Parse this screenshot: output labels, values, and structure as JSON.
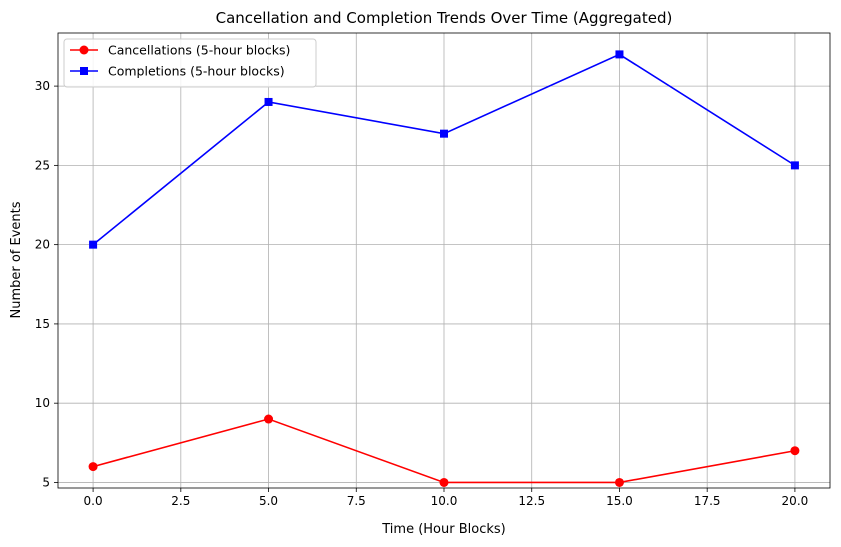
{
  "chart_data": {
    "type": "line",
    "title": "Cancellation and Completion Trends Over Time (Aggregated)",
    "xlabel": "Time (Hour Blocks)",
    "ylabel": "Number of Events",
    "x": [
      0,
      5,
      10,
      15,
      20
    ],
    "xlim": [
      -1,
      21
    ],
    "ylim": [
      4.65,
      33.35
    ],
    "xticks": [
      0.0,
      2.5,
      5.0,
      7.5,
      10.0,
      12.5,
      15.0,
      17.5,
      20.0
    ],
    "xtick_labels": [
      "0.0",
      "2.5",
      "5.0",
      "7.5",
      "10.0",
      "12.5",
      "15.0",
      "17.5",
      "20.0"
    ],
    "yticks": [
      5,
      10,
      15,
      20,
      25,
      30
    ],
    "ytick_labels": [
      "5",
      "10",
      "15",
      "20",
      "25",
      "30"
    ],
    "grid": true,
    "legend_position": "top-left",
    "series": [
      {
        "name": "Cancellations (5-hour blocks)",
        "values": [
          6,
          9,
          5,
          5,
          7
        ],
        "color": "#ff0000",
        "marker": "circle"
      },
      {
        "name": "Completions (5-hour blocks)",
        "values": [
          20,
          29,
          27,
          32,
          25
        ],
        "color": "#0000ff",
        "marker": "square"
      }
    ]
  }
}
